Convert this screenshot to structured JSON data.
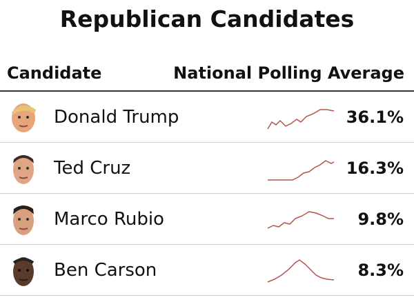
{
  "header": {
    "title": "Republican Candidates",
    "column_candidate": "Candidate",
    "column_polling": "National Polling Average"
  },
  "table": {
    "rows": [
      [
        "Donald Trump",
        "36.1%"
      ],
      [
        "Ted Cruz",
        "16.3%"
      ],
      [
        "Marco Rubio",
        "9.8%"
      ],
      [
        "Ben Carson",
        "8.3%"
      ]
    ]
  }
}
